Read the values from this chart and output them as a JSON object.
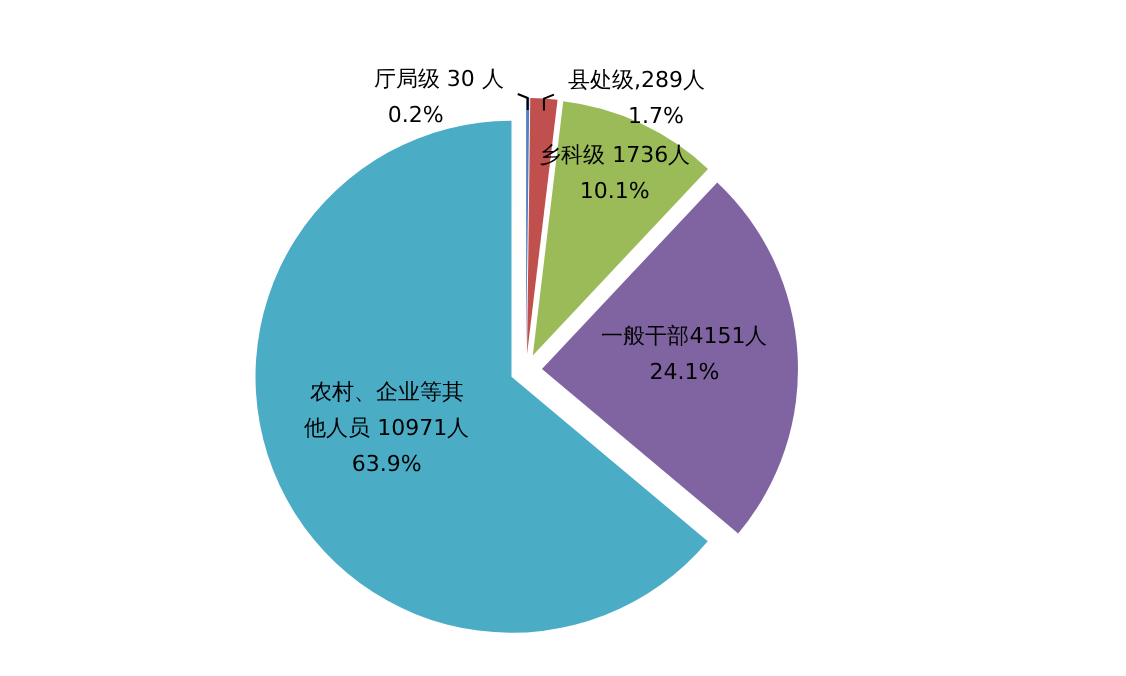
{
  "chart_data": {
    "type": "pie",
    "categories": [
      "厅局级 30 人",
      "县处级,289人",
      "乡科级 1736人",
      "一般干部4151人",
      "农村、企业等其他人员 10971人"
    ],
    "values": [
      0.2,
      1.7,
      10.1,
      24.1,
      63.9
    ],
    "colors": [
      "#4f81bd",
      "#c0504d",
      "#9bbb59",
      "#8064a2",
      "#4bacc6"
    ],
    "value_labels": [
      "0.2%",
      "1.7%",
      "10.1%",
      "24.1%",
      "63.9%"
    ],
    "legend": false
  }
}
